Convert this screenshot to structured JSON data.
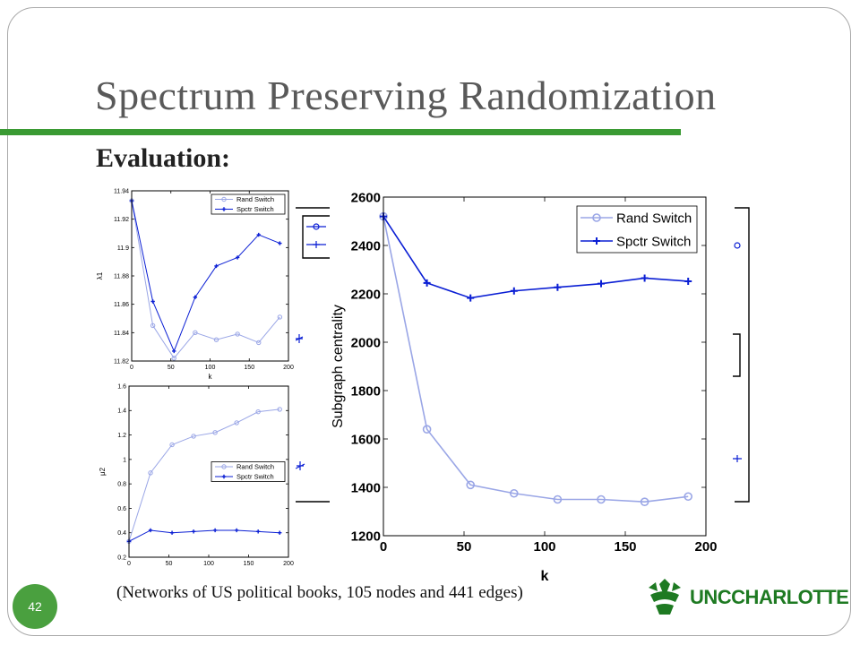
{
  "slide": {
    "title": "Spectrum Preserving Randomization",
    "subtitle": "Evaluation:",
    "caption": "(Networks of US political books, 105 nodes and 441 edges)",
    "page_number": "42",
    "logo_text": "UNCCHARLOTTE"
  },
  "colors": {
    "accent": "#3a9a33",
    "rand_series": "#9aa6e6",
    "spctr_series": "#0a1ed4"
  },
  "chart_data": [
    {
      "type": "line",
      "title": "",
      "xlabel": "k",
      "ylabel": "λ1",
      "xlim": [
        0,
        200
      ],
      "ylim": [
        11.82,
        11.94
      ],
      "xticks": [
        0,
        50,
        100,
        150,
        200
      ],
      "yticks": [
        11.82,
        11.84,
        11.86,
        11.88,
        11.9,
        11.92,
        11.94
      ],
      "ytick_labels": [
        "11.82",
        "11.84",
        "11.86",
        "11.88",
        "11.9",
        "11.92",
        "11.94"
      ],
      "legend": "top-right",
      "x": [
        0,
        27,
        54,
        81,
        108,
        135,
        162,
        189
      ],
      "series": [
        {
          "name": "Rand Switch",
          "values": [
            11.933,
            11.845,
            11.822,
            11.84,
            11.835,
            11.839,
            11.833,
            11.851
          ]
        },
        {
          "name": "Spctr Switch",
          "values": [
            11.933,
            11.862,
            11.827,
            11.865,
            11.887,
            11.893,
            11.909,
            11.903
          ]
        }
      ]
    },
    {
      "type": "line",
      "title": "",
      "xlabel": "",
      "ylabel": "μ2",
      "xlim": [
        0,
        200
      ],
      "ylim": [
        0.2,
        1.6
      ],
      "xticks": [
        0,
        50,
        100,
        150,
        200
      ],
      "yticks": [
        0.2,
        0.4,
        0.6,
        0.8,
        1,
        1.2,
        1.4,
        1.6
      ],
      "ytick_labels": [
        "0.2",
        "0.4",
        "0.6",
        "0.8",
        "1",
        "1.2",
        "1.4",
        "1.6"
      ],
      "legend": "center-right",
      "x": [
        0,
        27,
        54,
        81,
        108,
        135,
        162,
        189
      ],
      "series": [
        {
          "name": "Rand Switch",
          "values": [
            0.33,
            0.89,
            1.12,
            1.19,
            1.22,
            1.3,
            1.39,
            1.41
          ]
        },
        {
          "name": "Spctr Switch",
          "values": [
            0.33,
            0.42,
            0.4,
            0.41,
            0.42,
            0.42,
            0.41,
            0.4
          ]
        }
      ]
    },
    {
      "type": "line",
      "title": "",
      "xlabel": "k",
      "ylabel": "Subgraph centrality",
      "xlim": [
        0,
        200
      ],
      "ylim": [
        1200,
        2600
      ],
      "xticks": [
        0,
        50,
        100,
        150,
        200
      ],
      "yticks": [
        1200,
        1400,
        1600,
        1800,
        2000,
        2200,
        2400,
        2600
      ],
      "ytick_labels": [
        "1200",
        "1400",
        "1600",
        "1800",
        "2000",
        "2200",
        "2400",
        "2600"
      ],
      "legend": "top-right",
      "x": [
        0,
        27,
        54,
        81,
        108,
        135,
        162,
        189
      ],
      "series": [
        {
          "name": "Rand Switch",
          "values": [
            2520,
            1640,
            1410,
            1375,
            1350,
            1350,
            1340,
            1362
          ]
        },
        {
          "name": "Spctr Switch",
          "values": [
            2520,
            2245,
            2183,
            2212,
            2227,
            2242,
            2265,
            2252
          ]
        }
      ]
    }
  ]
}
